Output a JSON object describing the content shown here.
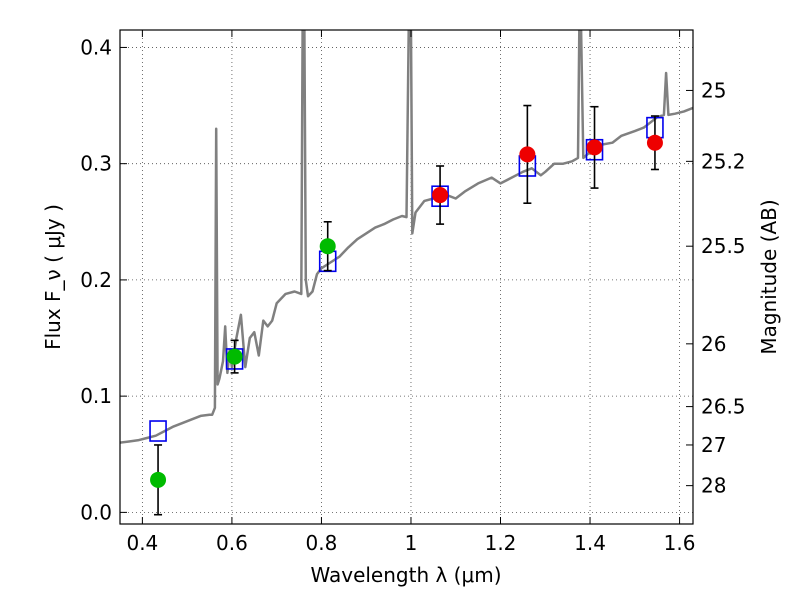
{
  "chart_data": {
    "type": "scatter",
    "title": "",
    "xlabel": "Wavelength  λ (μm)",
    "ylabel": "Flux  F_ν  ( μJy )",
    "ylabel_right": "Magnitude (AB)",
    "xlim": [
      0.35,
      1.63
    ],
    "ylim": [
      -0.01,
      0.415
    ],
    "grid": true,
    "x_ticks": [
      0.4,
      0.6,
      0.8,
      1.0,
      1.2,
      1.4,
      1.6
    ],
    "x_tick_labels": [
      "0.4",
      "0.6",
      "0.8",
      "1",
      "1.2",
      "1.4",
      "1.6"
    ],
    "y_ticks": [
      0.0,
      0.1,
      0.2,
      0.3,
      0.4
    ],
    "y_tick_labels": [
      "0.0",
      "0.1",
      "0.2",
      "0.3",
      "0.4"
    ],
    "right_ticks": [
      {
        "label": "25",
        "flux": 0.363
      },
      {
        "label": "25.2",
        "flux": 0.302
      },
      {
        "label": "25.5",
        "flux": 0.229
      },
      {
        "label": "26",
        "flux": 0.145
      },
      {
        "label": "26.5",
        "flux": 0.091
      },
      {
        "label": "27",
        "flux": 0.058
      },
      {
        "label": "28",
        "flux": 0.023
      }
    ],
    "colors": {
      "spectrum": "#808080",
      "optical": "#00bb00",
      "nir": "#ee0000",
      "model": "#0000ee",
      "errbar": "#000000"
    },
    "series": [
      {
        "marker": "circle-green",
        "x": [
          0.435,
          0.606,
          0.814
        ],
        "y": [
          0.028,
          0.134,
          0.229
        ],
        "yerr": [
          0.03,
          0.014,
          0.021
        ]
      },
      {
        "marker": "circle-red",
        "x": [
          1.065,
          1.26,
          1.41,
          1.545
        ],
        "y": [
          0.273,
          0.308,
          0.314,
          0.318
        ],
        "yerr": [
          0.025,
          0.042,
          0.035,
          0.023
        ]
      },
      {
        "marker": "square-blue",
        "x": [
          0.435,
          0.606,
          0.814,
          1.065,
          1.26,
          1.41,
          1.545
        ],
        "y": [
          0.07,
          0.132,
          0.216,
          0.272,
          0.298,
          0.312,
          0.331
        ]
      }
    ],
    "spectrum": [
      [
        0.35,
        0.06
      ],
      [
        0.37,
        0.061
      ],
      [
        0.39,
        0.062
      ],
      [
        0.41,
        0.064
      ],
      [
        0.43,
        0.066
      ],
      [
        0.45,
        0.07
      ],
      [
        0.47,
        0.074
      ],
      [
        0.49,
        0.077
      ],
      [
        0.51,
        0.08
      ],
      [
        0.53,
        0.083
      ],
      [
        0.55,
        0.084
      ],
      [
        0.556,
        0.084
      ],
      [
        0.562,
        0.09
      ],
      [
        0.565,
        0.33
      ],
      [
        0.568,
        0.11
      ],
      [
        0.572,
        0.115
      ],
      [
        0.58,
        0.13
      ],
      [
        0.585,
        0.16
      ],
      [
        0.59,
        0.12
      ],
      [
        0.595,
        0.14
      ],
      [
        0.6,
        0.125
      ],
      [
        0.61,
        0.15
      ],
      [
        0.62,
        0.17
      ],
      [
        0.63,
        0.125
      ],
      [
        0.64,
        0.15
      ],
      [
        0.65,
        0.155
      ],
      [
        0.66,
        0.135
      ],
      [
        0.67,
        0.165
      ],
      [
        0.68,
        0.16
      ],
      [
        0.69,
        0.165
      ],
      [
        0.7,
        0.18
      ],
      [
        0.72,
        0.188
      ],
      [
        0.74,
        0.19
      ],
      [
        0.755,
        0.188
      ],
      [
        0.758,
        0.415
      ],
      [
        0.762,
        0.415
      ],
      [
        0.765,
        0.2
      ],
      [
        0.77,
        0.186
      ],
      [
        0.78,
        0.19
      ],
      [
        0.79,
        0.205
      ],
      [
        0.8,
        0.21
      ],
      [
        0.82,
        0.215
      ],
      [
        0.84,
        0.22
      ],
      [
        0.86,
        0.228
      ],
      [
        0.88,
        0.235
      ],
      [
        0.9,
        0.24
      ],
      [
        0.92,
        0.245
      ],
      [
        0.94,
        0.248
      ],
      [
        0.96,
        0.252
      ],
      [
        0.98,
        0.255
      ],
      [
        0.99,
        0.254
      ],
      [
        0.995,
        0.415
      ],
      [
        1.0,
        0.415
      ],
      [
        1.003,
        0.24
      ],
      [
        1.01,
        0.258
      ],
      [
        1.03,
        0.268
      ],
      [
        1.05,
        0.27
      ],
      [
        1.08,
        0.273
      ],
      [
        1.1,
        0.27
      ],
      [
        1.12,
        0.276
      ],
      [
        1.15,
        0.283
      ],
      [
        1.18,
        0.288
      ],
      [
        1.2,
        0.283
      ],
      [
        1.22,
        0.287
      ],
      [
        1.25,
        0.293
      ],
      [
        1.27,
        0.296
      ],
      [
        1.29,
        0.29
      ],
      [
        1.3,
        0.293
      ],
      [
        1.32,
        0.3
      ],
      [
        1.34,
        0.3
      ],
      [
        1.36,
        0.302
      ],
      [
        1.373,
        0.305
      ],
      [
        1.376,
        0.415
      ],
      [
        1.38,
        0.415
      ],
      [
        1.385,
        0.305
      ],
      [
        1.4,
        0.31
      ],
      [
        1.42,
        0.316
      ],
      [
        1.45,
        0.318
      ],
      [
        1.47,
        0.324
      ],
      [
        1.5,
        0.328
      ],
      [
        1.52,
        0.331
      ],
      [
        1.55,
        0.34
      ],
      [
        1.565,
        0.342
      ],
      [
        1.57,
        0.378
      ],
      [
        1.575,
        0.342
      ],
      [
        1.59,
        0.343
      ],
      [
        1.61,
        0.345
      ],
      [
        1.63,
        0.348
      ]
    ]
  }
}
